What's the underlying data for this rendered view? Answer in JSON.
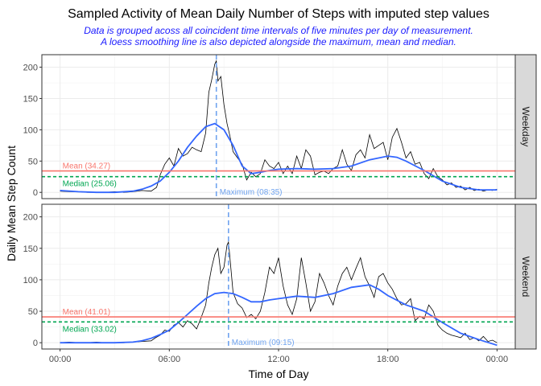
{
  "chart_data": {
    "type": "line",
    "title": "Sampled Activity of Mean Daily Number of Steps with imputed step values",
    "subtitle_lines": [
      "Data is grouped acoss all coincident time intervals of five minutes per day of measurement.",
      "A loess smoothing line is also depicted alongside the maximum, mean and median."
    ],
    "xlabel": "Time of Day",
    "ylabel": "Daily Mean Step Count",
    "xlim": [
      -1,
      25
    ],
    "ylim": [
      -10,
      220
    ],
    "x_unit": "hours",
    "x_ticks": [
      {
        "value": 0,
        "label": "00:00"
      },
      {
        "value": 6,
        "label": "06:00"
      },
      {
        "value": 12,
        "label": "12:00"
      },
      {
        "value": 18,
        "label": "18:00"
      },
      {
        "value": 24,
        "label": "00:00"
      }
    ],
    "y_ticks": [
      0,
      50,
      100,
      150,
      200
    ],
    "grid": true,
    "colors": {
      "raw_line": "#000000",
      "smooth_line": "#3366ff",
      "mean_line": "#f8766d",
      "median_line": "#00a651",
      "max_line": "#6fa3ef",
      "strip_fill": "#d9d9d9"
    },
    "panels": [
      {
        "strip": "Weekday",
        "mean": {
          "value": 34.27,
          "label": "Mean (34.27)"
        },
        "median": {
          "value": 25.06,
          "label": "Median (25.06)"
        },
        "maximum": {
          "x": 8.583,
          "label": "Maximum (08:35)"
        },
        "raw": [
          [
            0,
            2
          ],
          [
            0.5,
            1
          ],
          [
            1,
            1
          ],
          [
            1.5,
            0
          ],
          [
            2,
            0
          ],
          [
            2.5,
            0
          ],
          [
            3,
            1
          ],
          [
            3.5,
            0
          ],
          [
            4,
            1
          ],
          [
            4.5,
            3
          ],
          [
            5,
            2
          ],
          [
            5.3,
            8
          ],
          [
            5.5,
            28
          ],
          [
            5.75,
            45
          ],
          [
            6,
            55
          ],
          [
            6.25,
            42
          ],
          [
            6.5,
            70
          ],
          [
            6.75,
            58
          ],
          [
            7,
            62
          ],
          [
            7.25,
            72
          ],
          [
            7.5,
            68
          ],
          [
            7.75,
            65
          ],
          [
            8,
            95
          ],
          [
            8.17,
            160
          ],
          [
            8.33,
            180
          ],
          [
            8.5,
            205
          ],
          [
            8.583,
            210
          ],
          [
            8.67,
            178
          ],
          [
            8.83,
            185
          ],
          [
            9,
            140
          ],
          [
            9.17,
            110
          ],
          [
            9.33,
            90
          ],
          [
            9.5,
            65
          ],
          [
            9.75,
            55
          ],
          [
            10,
            45
          ],
          [
            10.25,
            20
          ],
          [
            10.5,
            32
          ],
          [
            10.75,
            25
          ],
          [
            11,
            30
          ],
          [
            11.25,
            52
          ],
          [
            11.5,
            42
          ],
          [
            11.75,
            38
          ],
          [
            12,
            48
          ],
          [
            12.25,
            30
          ],
          [
            12.5,
            42
          ],
          [
            12.75,
            30
          ],
          [
            13,
            58
          ],
          [
            13.25,
            38
          ],
          [
            13.5,
            68
          ],
          [
            13.75,
            58
          ],
          [
            14,
            28
          ],
          [
            14.25,
            32
          ],
          [
            14.5,
            34
          ],
          [
            14.75,
            30
          ],
          [
            15,
            38
          ],
          [
            15.25,
            42
          ],
          [
            15.5,
            68
          ],
          [
            15.75,
            45
          ],
          [
            16,
            35
          ],
          [
            16.25,
            60
          ],
          [
            16.5,
            68
          ],
          [
            16.75,
            55
          ],
          [
            17,
            92
          ],
          [
            17.25,
            70
          ],
          [
            17.5,
            75
          ],
          [
            17.75,
            80
          ],
          [
            18,
            52
          ],
          [
            18.25,
            88
          ],
          [
            18.5,
            102
          ],
          [
            18.75,
            80
          ],
          [
            19,
            55
          ],
          [
            19.25,
            65
          ],
          [
            19.5,
            45
          ],
          [
            19.75,
            48
          ],
          [
            20,
            30
          ],
          [
            20.25,
            22
          ],
          [
            20.5,
            38
          ],
          [
            20.75,
            25
          ],
          [
            21,
            20
          ],
          [
            21.25,
            12
          ],
          [
            21.5,
            15
          ],
          [
            21.75,
            8
          ],
          [
            22,
            10
          ],
          [
            22.25,
            4
          ],
          [
            22.5,
            8
          ],
          [
            22.75,
            3
          ],
          [
            23,
            5
          ],
          [
            23.25,
            2
          ],
          [
            23.5,
            4
          ],
          [
            23.75,
            3
          ],
          [
            24,
            5
          ]
        ],
        "smooth": [
          [
            0,
            3
          ],
          [
            1,
            1
          ],
          [
            2,
            0
          ],
          [
            3,
            0
          ],
          [
            4,
            2
          ],
          [
            4.5,
            5
          ],
          [
            5,
            10
          ],
          [
            5.5,
            18
          ],
          [
            6,
            32
          ],
          [
            6.5,
            50
          ],
          [
            7,
            72
          ],
          [
            7.5,
            90
          ],
          [
            8,
            105
          ],
          [
            8.5,
            110
          ],
          [
            9,
            100
          ],
          [
            9.5,
            75
          ],
          [
            10,
            42
          ],
          [
            10.5,
            30
          ],
          [
            11,
            32
          ],
          [
            11.5,
            35
          ],
          [
            12,
            37
          ],
          [
            13,
            38
          ],
          [
            14,
            37
          ],
          [
            15,
            38
          ],
          [
            16,
            42
          ],
          [
            17,
            52
          ],
          [
            18,
            58
          ],
          [
            18.5,
            56
          ],
          [
            19,
            50
          ],
          [
            20,
            35
          ],
          [
            21,
            18
          ],
          [
            22,
            8
          ],
          [
            23,
            4
          ],
          [
            24,
            4
          ]
        ]
      },
      {
        "strip": "Weekend",
        "mean": {
          "value": 41.01,
          "label": "Mean (41.01)"
        },
        "median": {
          "value": 33.02,
          "label": "Median (33.02)"
        },
        "maximum": {
          "x": 9.25,
          "label": "Maximum (09:15)"
        },
        "raw": [
          [
            0,
            0
          ],
          [
            0.5,
            1
          ],
          [
            1,
            0
          ],
          [
            1.5,
            0
          ],
          [
            2,
            1
          ],
          [
            2.5,
            0
          ],
          [
            3,
            0
          ],
          [
            3.5,
            0
          ],
          [
            4,
            1
          ],
          [
            4.5,
            2
          ],
          [
            5,
            3
          ],
          [
            5.25,
            8
          ],
          [
            5.5,
            12
          ],
          [
            5.75,
            20
          ],
          [
            6,
            18
          ],
          [
            6.25,
            28
          ],
          [
            6.5,
            32
          ],
          [
            6.75,
            25
          ],
          [
            7,
            35
          ],
          [
            7.25,
            30
          ],
          [
            7.5,
            22
          ],
          [
            7.75,
            40
          ],
          [
            8,
            60
          ],
          [
            8.17,
            95
          ],
          [
            8.33,
            120
          ],
          [
            8.5,
            140
          ],
          [
            8.67,
            150
          ],
          [
            8.83,
            110
          ],
          [
            9,
            120
          ],
          [
            9.17,
            155
          ],
          [
            9.25,
            160
          ],
          [
            9.33,
            135
          ],
          [
            9.5,
            80
          ],
          [
            9.75,
            62
          ],
          [
            10,
            55
          ],
          [
            10.25,
            40
          ],
          [
            10.5,
            45
          ],
          [
            10.75,
            38
          ],
          [
            11,
            50
          ],
          [
            11.25,
            80
          ],
          [
            11.5,
            120
          ],
          [
            11.75,
            110
          ],
          [
            12,
            135
          ],
          [
            12.25,
            90
          ],
          [
            12.5,
            60
          ],
          [
            12.75,
            45
          ],
          [
            13,
            70
          ],
          [
            13.25,
            135
          ],
          [
            13.5,
            95
          ],
          [
            13.75,
            50
          ],
          [
            14,
            65
          ],
          [
            14.25,
            110
          ],
          [
            14.5,
            95
          ],
          [
            14.75,
            75
          ],
          [
            15,
            60
          ],
          [
            15.25,
            90
          ],
          [
            15.5,
            110
          ],
          [
            15.75,
            120
          ],
          [
            16,
            100
          ],
          [
            16.25,
            118
          ],
          [
            16.5,
            135
          ],
          [
            16.75,
            105
          ],
          [
            17,
            90
          ],
          [
            17.25,
            72
          ],
          [
            17.5,
            105
          ],
          [
            17.75,
            110
          ],
          [
            18,
            95
          ],
          [
            18.25,
            85
          ],
          [
            18.5,
            70
          ],
          [
            18.75,
            60
          ],
          [
            19,
            62
          ],
          [
            19.25,
            70
          ],
          [
            19.5,
            35
          ],
          [
            19.75,
            42
          ],
          [
            20,
            38
          ],
          [
            20.25,
            60
          ],
          [
            20.5,
            50
          ],
          [
            20.75,
            28
          ],
          [
            21,
            20
          ],
          [
            21.25,
            15
          ],
          [
            21.5,
            12
          ],
          [
            21.75,
            10
          ],
          [
            22,
            8
          ],
          [
            22.25,
            15
          ],
          [
            22.5,
            5
          ],
          [
            22.75,
            8
          ],
          [
            23,
            3
          ],
          [
            23.25,
            10
          ],
          [
            23.5,
            2
          ],
          [
            23.75,
            4
          ],
          [
            24,
            0
          ]
        ],
        "smooth": [
          [
            0,
            0
          ],
          [
            1,
            0
          ],
          [
            2,
            0
          ],
          [
            3,
            0
          ],
          [
            4,
            1
          ],
          [
            4.5,
            3
          ],
          [
            5,
            7
          ],
          [
            5.5,
            13
          ],
          [
            6,
            20
          ],
          [
            6.5,
            32
          ],
          [
            7,
            45
          ],
          [
            7.5,
            58
          ],
          [
            8,
            70
          ],
          [
            8.5,
            78
          ],
          [
            9,
            80
          ],
          [
            9.5,
            78
          ],
          [
            10,
            72
          ],
          [
            10.5,
            65
          ],
          [
            11,
            65
          ],
          [
            11.5,
            68
          ],
          [
            12,
            70
          ],
          [
            13,
            74
          ],
          [
            14,
            72
          ],
          [
            15,
            78
          ],
          [
            16,
            88
          ],
          [
            17,
            92
          ],
          [
            17.5,
            85
          ],
          [
            18,
            75
          ],
          [
            19,
            60
          ],
          [
            20,
            50
          ],
          [
            21,
            32
          ],
          [
            22,
            15
          ],
          [
            23,
            5
          ],
          [
            24,
            -4
          ]
        ]
      }
    ]
  }
}
